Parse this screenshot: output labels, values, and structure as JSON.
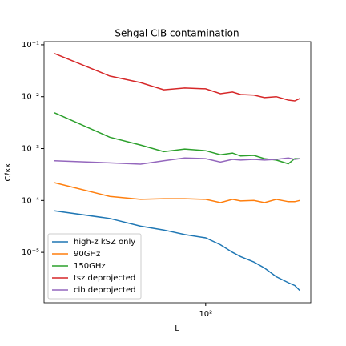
{
  "chart_data": {
    "type": "line",
    "title": "Sehgal CIB contamination",
    "xlabel": "L",
    "ylabel": "Cℓκκ",
    "xscale": "log",
    "yscale": "log",
    "legend": "lower left",
    "x": [
      20,
      36,
      50,
      64,
      80,
      100,
      117,
      133,
      145,
      167,
      187,
      212,
      241,
      258,
      272
    ],
    "series": [
      {
        "name": "high-z kSZ only",
        "color": "#1f77b4",
        "values": [
          6.3e-05,
          4.5e-05,
          3.2e-05,
          2.7e-05,
          2.2e-05,
          1.9e-05,
          1.4e-05,
          1e-05,
          8.3e-06,
          6.5e-06,
          5e-06,
          3.4e-06,
          2.6e-06,
          2.3e-06,
          1.85e-06
        ]
      },
      {
        "name": "90GHz",
        "color": "#ff7f0e",
        "values": [
          0.00022,
          0.00012,
          0.000105,
          0.000108,
          0.000108,
          0.000105,
          9.1e-05,
          0.000105,
          9.8e-05,
          0.0001,
          9.1e-05,
          0.000105,
          9.5e-05,
          9.5e-05,
          0.0001
        ]
      },
      {
        "name": "150GHz",
        "color": "#2ca02c",
        "values": [
          0.0049,
          0.00166,
          0.00117,
          0.00087,
          0.00098,
          0.00091,
          0.00076,
          0.00082,
          0.00072,
          0.00074,
          0.00064,
          0.0006,
          0.00051,
          0.00064,
          0.00064
        ]
      },
      {
        "name": "tsz deprojected",
        "color": "#d62728",
        "values": [
          0.068,
          0.025,
          0.0187,
          0.0136,
          0.0147,
          0.0142,
          0.0114,
          0.0123,
          0.011,
          0.0107,
          0.0096,
          0.01,
          0.0086,
          0.0083,
          0.0092
        ]
      },
      {
        "name": "cib deprojected",
        "color": "#9467bd",
        "values": [
          0.00058,
          0.00053,
          0.0005,
          0.00058,
          0.00066,
          0.00064,
          0.00055,
          0.00062,
          0.0006,
          0.00062,
          0.0006,
          0.00062,
          0.00066,
          0.00062,
          0.00064
        ]
      }
    ],
    "xlim": [
      17.9,
      306
    ],
    "ylim": [
      1.07e-06,
      0.115
    ],
    "xticks": [
      {
        "value": 100,
        "label": "10²"
      }
    ],
    "yticks": [
      {
        "value": 1e-05,
        "label": "10⁻⁵"
      },
      {
        "value": 0.0001,
        "label": "10⁻⁴"
      },
      {
        "value": 0.001,
        "label": "10⁻³"
      },
      {
        "value": 0.01,
        "label": "10⁻²"
      },
      {
        "value": 0.1,
        "label": "10⁻¹"
      }
    ]
  }
}
